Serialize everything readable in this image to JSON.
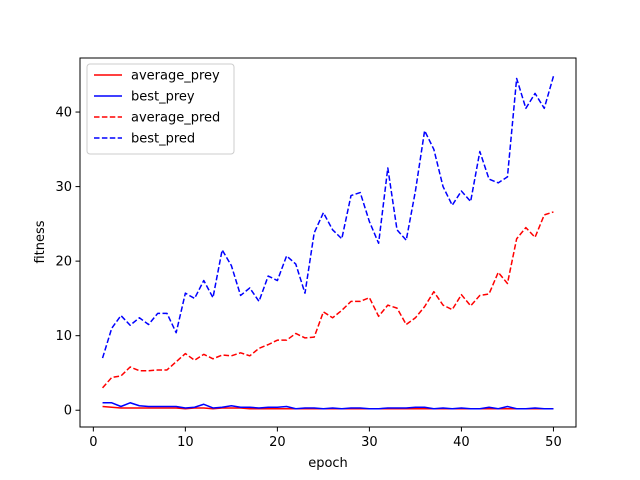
{
  "chart_data": {
    "type": "line",
    "xlabel": "epoch",
    "ylabel": "fitness",
    "xlim": [
      -1.45,
      52.45
    ],
    "ylim": [
      -2.25,
      47.25
    ],
    "xticks": [
      0,
      10,
      20,
      30,
      40,
      50
    ],
    "yticks": [
      0,
      10,
      20,
      30,
      40
    ],
    "grid": false,
    "legend_position": "top-left",
    "x": [
      1,
      2,
      3,
      4,
      5,
      6,
      7,
      8,
      9,
      10,
      11,
      12,
      13,
      14,
      15,
      16,
      17,
      18,
      19,
      20,
      21,
      22,
      23,
      24,
      25,
      26,
      27,
      28,
      29,
      30,
      31,
      32,
      33,
      34,
      35,
      36,
      37,
      38,
      39,
      40,
      41,
      42,
      43,
      44,
      45,
      46,
      47,
      48,
      49,
      50
    ],
    "series": [
      {
        "name": "average_prey",
        "color": "#ff0000",
        "linestyle": "solid",
        "values": [
          0.5,
          0.4,
          0.3,
          0.3,
          0.3,
          0.3,
          0.3,
          0.3,
          0.3,
          0.2,
          0.3,
          0.3,
          0.2,
          0.3,
          0.3,
          0.3,
          0.2,
          0.2,
          0.2,
          0.2,
          0.2,
          0.2,
          0.2,
          0.2,
          0.2,
          0.2,
          0.2,
          0.2,
          0.2,
          0.2,
          0.2,
          0.2,
          0.2,
          0.2,
          0.2,
          0.2,
          0.2,
          0.2,
          0.2,
          0.2,
          0.2,
          0.2,
          0.2,
          0.2,
          0.2,
          0.2,
          0.2,
          0.2,
          0.2,
          0.2
        ]
      },
      {
        "name": "best_prey",
        "color": "#0000ff",
        "linestyle": "solid",
        "values": [
          1.0,
          1.0,
          0.5,
          1.0,
          0.6,
          0.5,
          0.5,
          0.5,
          0.5,
          0.3,
          0.4,
          0.8,
          0.3,
          0.4,
          0.6,
          0.4,
          0.4,
          0.3,
          0.4,
          0.4,
          0.5,
          0.2,
          0.3,
          0.3,
          0.2,
          0.3,
          0.2,
          0.3,
          0.3,
          0.2,
          0.2,
          0.3,
          0.3,
          0.3,
          0.4,
          0.4,
          0.2,
          0.3,
          0.2,
          0.3,
          0.2,
          0.2,
          0.4,
          0.2,
          0.5,
          0.2,
          0.2,
          0.3,
          0.2,
          0.2
        ]
      },
      {
        "name": "average_pred",
        "color": "#ff0000",
        "linestyle": "dashed",
        "values": [
          3.0,
          4.4,
          4.6,
          5.8,
          5.3,
          5.3,
          5.4,
          5.4,
          6.5,
          7.6,
          6.7,
          7.5,
          6.9,
          7.4,
          7.3,
          7.7,
          7.3,
          8.3,
          8.8,
          9.4,
          9.4,
          10.3,
          9.7,
          9.8,
          13.2,
          12.4,
          13.4,
          14.6,
          14.6,
          15.1,
          12.6,
          14.1,
          13.7,
          11.5,
          12.4,
          13.9,
          15.9,
          14.1,
          13.5,
          15.5,
          14.0,
          15.4,
          15.6,
          18.5,
          17.0,
          23.0,
          24.5,
          23.2,
          26.2,
          26.6
        ]
      },
      {
        "name": "best_pred",
        "color": "#0000ff",
        "linestyle": "dashed",
        "values": [
          7.0,
          11.0,
          12.7,
          11.4,
          12.4,
          11.5,
          13.0,
          13.0,
          10.4,
          15.7,
          15.0,
          17.4,
          15.1,
          21.5,
          19.4,
          15.4,
          16.4,
          14.6,
          18.0,
          17.4,
          20.7,
          19.6,
          15.7,
          23.8,
          26.5,
          24.2,
          23.0,
          28.8,
          29.2,
          25.3,
          22.4,
          32.5,
          24.2,
          22.8,
          29.4,
          37.5,
          35.0,
          30.0,
          27.5,
          29.4,
          28.0,
          34.7,
          31.0,
          30.5,
          31.3,
          44.5,
          40.5,
          42.5,
          40.5,
          44.8
        ]
      }
    ]
  }
}
